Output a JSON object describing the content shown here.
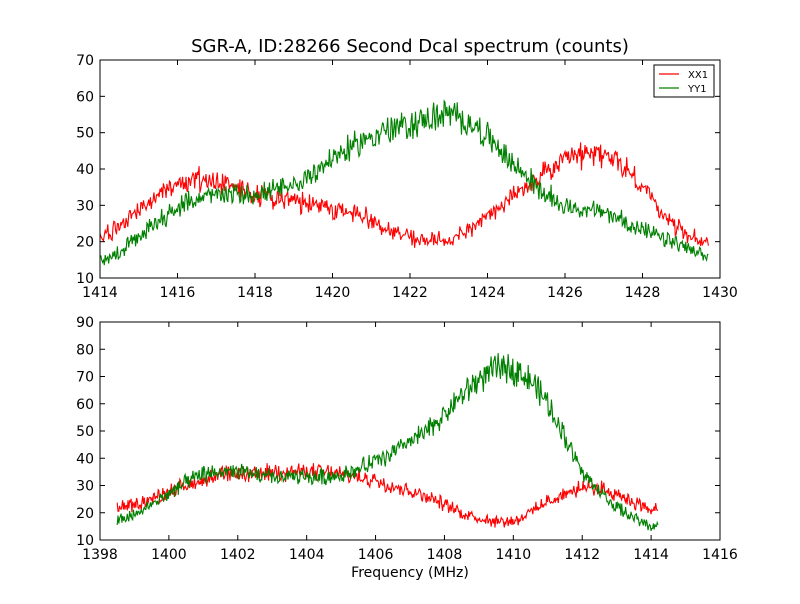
{
  "figure": {
    "title": "SGR-A, ID:28266 Second Dcal spectrum (counts)",
    "background": "#ffffff"
  },
  "chart_data": [
    {
      "type": "line",
      "title": "SGR-A, ID:28266 Second Dcal spectrum (counts)",
      "xlabel": "",
      "ylabel": "",
      "xlim": [
        1414,
        1430
      ],
      "ylim": [
        10,
        70
      ],
      "xticks": [
        1414,
        1416,
        1418,
        1420,
        1422,
        1424,
        1426,
        1428,
        1430
      ],
      "yticks": [
        10,
        20,
        30,
        40,
        50,
        60,
        70
      ],
      "grid": false,
      "legend": {
        "placement": "top-right",
        "entries": [
          "XX1",
          "YY1"
        ]
      },
      "series": [
        {
          "name": "XX1",
          "color": "#ff0000",
          "x": [
            1414.0,
            1414.5,
            1415.0,
            1415.5,
            1416.0,
            1416.5,
            1417.0,
            1417.5,
            1418.0,
            1418.5,
            1419.0,
            1419.5,
            1420.0,
            1420.5,
            1421.0,
            1421.5,
            1422.0,
            1422.5,
            1423.0,
            1423.5,
            1424.0,
            1424.5,
            1425.0,
            1425.5,
            1426.0,
            1426.5,
            1427.0,
            1427.5,
            1428.0,
            1428.5,
            1429.0,
            1429.5
          ],
          "y": [
            21,
            24,
            29,
            33,
            36,
            37,
            37,
            35,
            33,
            32,
            31,
            30,
            29,
            28,
            26,
            23,
            21,
            20,
            21,
            23,
            27,
            31,
            35,
            39,
            42,
            44,
            44,
            41,
            35,
            28,
            23,
            20
          ]
        },
        {
          "name": "YY1",
          "color": "#008000",
          "x": [
            1414.0,
            1414.5,
            1415.0,
            1415.5,
            1416.0,
            1416.5,
            1417.0,
            1417.5,
            1418.0,
            1418.5,
            1419.0,
            1419.5,
            1420.0,
            1420.5,
            1421.0,
            1421.5,
            1422.0,
            1422.5,
            1423.0,
            1423.5,
            1424.0,
            1424.5,
            1425.0,
            1425.5,
            1426.0,
            1426.5,
            1427.0,
            1427.5,
            1428.0,
            1428.5,
            1429.0,
            1429.5
          ],
          "y": [
            15,
            17,
            21,
            26,
            29,
            32,
            33,
            33,
            33,
            34,
            35,
            39,
            43,
            46,
            49,
            51,
            52,
            54,
            55,
            53,
            49,
            43,
            38,
            33,
            30,
            29,
            28,
            26,
            23,
            21,
            19,
            16
          ]
        }
      ]
    },
    {
      "type": "line",
      "title": "",
      "xlabel": "Frequency (MHz)",
      "ylabel": "",
      "xlim": [
        1398,
        1416
      ],
      "ylim": [
        10,
        90
      ],
      "xticks": [
        1398,
        1400,
        1402,
        1404,
        1406,
        1408,
        1410,
        1412,
        1414,
        1416
      ],
      "yticks": [
        10,
        20,
        30,
        40,
        50,
        60,
        70,
        80,
        90
      ],
      "grid": false,
      "series": [
        {
          "color": "#ff0000",
          "x": [
            1398.5,
            1399.0,
            1399.5,
            1400.0,
            1400.5,
            1401.0,
            1401.5,
            1402.0,
            1402.5,
            1403.0,
            1403.5,
            1404.0,
            1404.5,
            1405.0,
            1405.5,
            1406.0,
            1406.5,
            1407.0,
            1407.5,
            1408.0,
            1408.5,
            1409.0,
            1409.5,
            1410.0,
            1410.5,
            1411.0,
            1411.5,
            1412.0,
            1412.5,
            1413.0,
            1413.5,
            1414.0
          ],
          "y": [
            22,
            23,
            25,
            28,
            30,
            32,
            34,
            34,
            34,
            35,
            35,
            35,
            35,
            34,
            33,
            32,
            30,
            28,
            26,
            23,
            20,
            18,
            17,
            17,
            20,
            24,
            27,
            29,
            29,
            27,
            24,
            21
          ]
        },
        {
          "color": "#008000",
          "x": [
            1398.5,
            1399.0,
            1399.5,
            1400.0,
            1400.5,
            1401.0,
            1401.5,
            1402.0,
            1402.5,
            1403.0,
            1403.5,
            1404.0,
            1404.5,
            1405.0,
            1405.5,
            1406.0,
            1406.5,
            1407.0,
            1407.5,
            1408.0,
            1408.5,
            1409.0,
            1409.5,
            1410.0,
            1410.5,
            1411.0,
            1411.5,
            1412.0,
            1412.5,
            1413.0,
            1413.5,
            1414.0
          ],
          "y": [
            17,
            19,
            23,
            27,
            31,
            34,
            35,
            35,
            34,
            33,
            33,
            33,
            33,
            34,
            36,
            39,
            42,
            46,
            50,
            56,
            63,
            69,
            73,
            73,
            69,
            60,
            48,
            35,
            28,
            22,
            18,
            15
          ]
        }
      ]
    }
  ]
}
